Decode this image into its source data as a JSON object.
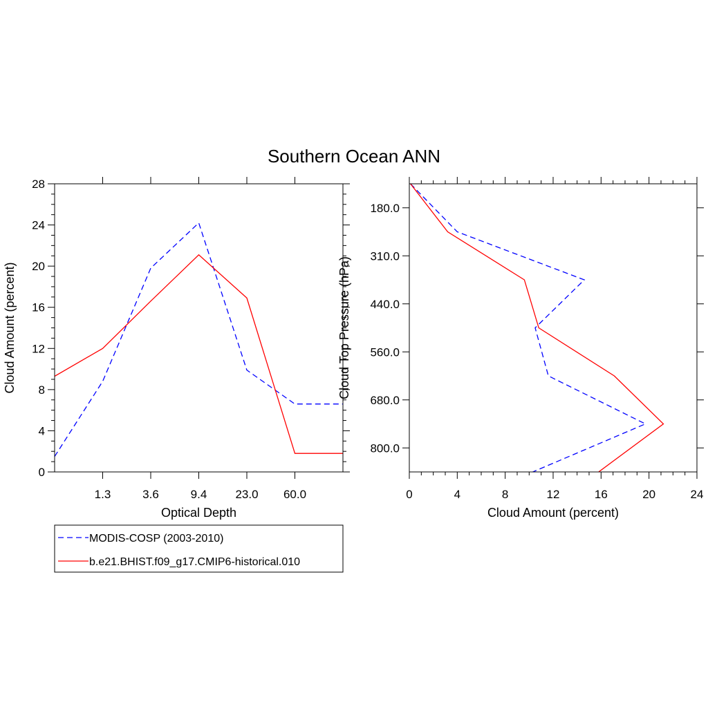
{
  "title": "Southern Ocean ANN",
  "series_styles": [
    {
      "name": "MODIS-COSP (2003-2010)",
      "color": "#0000ff",
      "dash": "dashed"
    },
    {
      "name": "b.e21.BHIST.f09_g17.CMIP6-historical.010",
      "color": "#ff0000",
      "dash": "solid"
    }
  ],
  "legend": {
    "items": [
      "MODIS-COSP (2003-2010)",
      "b.e21.BHIST.f09_g17.CMIP6-historical.010"
    ],
    "placement": "below-left"
  },
  "chart_data": [
    {
      "type": "line",
      "xlabel": "Optical Depth",
      "ylabel": "Cloud Amount (percent)",
      "x_index_range": [
        0,
        6
      ],
      "x_tick_positions": [
        1,
        2,
        3,
        4,
        5
      ],
      "x_tick_labels": [
        "1.3",
        "3.6",
        "9.4",
        "23.0",
        "60.0"
      ],
      "ylim": [
        0,
        28
      ],
      "y_ticks": [
        0,
        4,
        8,
        12,
        16,
        20,
        24,
        28
      ],
      "y_minor_step": 1,
      "grid": false,
      "series": [
        {
          "name": "MODIS-COSP (2003-2010)",
          "x": [
            0,
            1,
            2,
            3,
            4,
            5,
            6
          ],
          "values": [
            1.5,
            8.8,
            19.8,
            24.2,
            9.9,
            6.6,
            6.6
          ]
        },
        {
          "name": "b.e21.BHIST.f09_g17.CMIP6-historical.010",
          "x": [
            0,
            1,
            2,
            3,
            4,
            5,
            6
          ],
          "values": [
            9.3,
            12.0,
            16.6,
            21.1,
            16.9,
            1.8,
            1.8
          ]
        }
      ]
    },
    {
      "type": "line",
      "xlabel": "Cloud Amount (percent)",
      "ylabel": "Cloud Top Pressure (hPa)",
      "xlim": [
        0,
        24
      ],
      "x_ticks": [
        0,
        4,
        8,
        12,
        16,
        20,
        24
      ],
      "x_minor_step": 1,
      "y_index_range": [
        0,
        7
      ],
      "y_tick_positions": [
        0.5,
        1.5,
        2.5,
        3.5,
        4.5,
        5.5
      ],
      "y_tick_labels": [
        "180.0",
        "310.0",
        "440.0",
        "560.0",
        "680.0",
        "800.0"
      ],
      "grid": false,
      "series": [
        {
          "name": "MODIS-COSP (2003-2010)",
          "y": [
            0,
            1,
            2,
            3,
            4,
            5,
            6,
            7
          ],
          "values": [
            0.1,
            4.0,
            14.6,
            10.5,
            11.6,
            19.7,
            10.3,
            10.3
          ]
        },
        {
          "name": "b.e21.BHIST.f09_g17.CMIP6-historical.010",
          "y": [
            0,
            1,
            2,
            3,
            4,
            5,
            6,
            7
          ],
          "values": [
            0.1,
            3.2,
            9.6,
            10.8,
            17.1,
            21.2,
            15.8,
            15.8
          ]
        }
      ]
    }
  ]
}
